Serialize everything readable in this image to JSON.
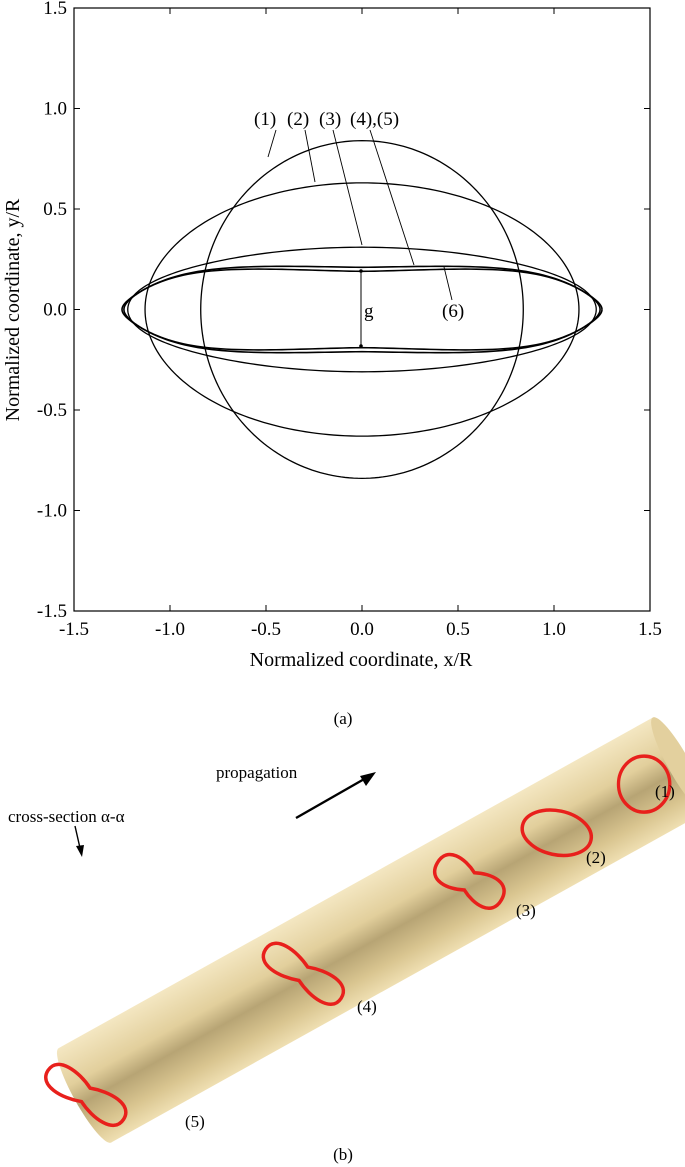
{
  "panel_a": {
    "label": "(a)",
    "curve_labels": [
      "(1)",
      "(2)",
      "(3)",
      "(4),(5)",
      "(6)"
    ],
    "gap_label": "g"
  },
  "panel_b": {
    "label": "(b)",
    "propagation_label": "propagation",
    "cross_section_label": "cross-section α-α",
    "section_labels": [
      "(1)",
      "(2)",
      "(3)",
      "(4)",
      "(5)"
    ],
    "colors": {
      "tube": "#e6d3a1",
      "section": "#e8201c"
    }
  },
  "chart_data": {
    "type": "line",
    "xlabel": "Normalized coordinate, x/R",
    "ylabel": "Normalized coordinate, y/R",
    "xlim": [
      -1.5,
      1.5
    ],
    "ylim": [
      -1.5,
      1.5
    ],
    "xticks": [
      "-1.5",
      "-1.0",
      "-0.5",
      "0.0",
      "0.5",
      "1.0",
      "1.5"
    ],
    "yticks": [
      "1.5",
      "1.0",
      "0.5",
      "0.0",
      "-0.5",
      "-1.0",
      "-1.5"
    ],
    "grid": false,
    "series": [
      {
        "name": "(1)",
        "x": [
          0,
          0.84,
          0,
          -0.84
        ],
        "y": [
          0.84,
          0,
          -0.84,
          0
        ]
      },
      {
        "name": "(2)",
        "x": [
          0,
          1.13,
          0,
          -1.13
        ],
        "y": [
          0.63,
          0,
          -0.63,
          0
        ]
      },
      {
        "name": "(3)",
        "x": [
          0,
          1.22,
          0,
          -1.22
        ],
        "y": [
          0.31,
          0,
          -0.31,
          0
        ]
      },
      {
        "name": "(4),(5)",
        "x": [
          0,
          1.24,
          0,
          -1.24
        ],
        "y": [
          0.21,
          0,
          -0.21,
          0
        ]
      },
      {
        "name": "(6)",
        "x": [
          0,
          1.25,
          0,
          -1.25
        ],
        "y": [
          0.19,
          0,
          -0.19,
          0
        ]
      }
    ]
  }
}
